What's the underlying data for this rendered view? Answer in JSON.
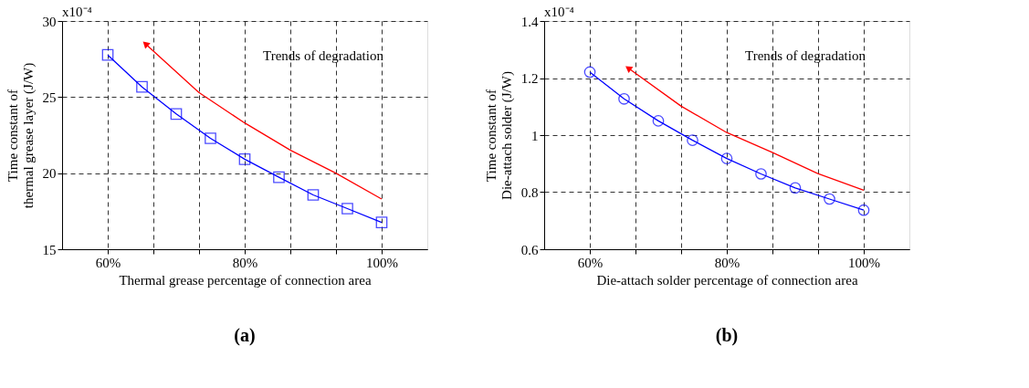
{
  "chart_data": [
    {
      "type": "line",
      "xlabel": "Thermal grease percentage of connection area",
      "ylabel": "Time constant of\nthermal grease layer (J/W)",
      "annotations": [
        "x10⁻⁴",
        "Trends of degradation",
        "(a)"
      ],
      "xlim": [
        53.33,
        106.67
      ],
      "xticks": [
        {
          "value": 60,
          "label": "60%"
        },
        {
          "value": 66.67,
          "label": null
        },
        {
          "value": 73.33,
          "label": null
        },
        {
          "value": 80,
          "label": "80%"
        },
        {
          "value": 86.67,
          "label": null
        },
        {
          "value": 93.33,
          "label": null
        },
        {
          "value": 100,
          "label": "100%"
        }
      ],
      "ylim": [
        15,
        30
      ],
      "yticks": [
        15,
        20,
        25,
        30
      ],
      "grid": true,
      "legend": false,
      "marker": "square",
      "line_style": "solid",
      "series": [
        {
          "color": "#0000ff",
          "x": [
            60,
            65,
            70,
            75,
            80,
            85,
            90,
            95,
            100
          ],
          "values": [
            27.77,
            25.67,
            23.89,
            22.29,
            20.92,
            19.73,
            18.57,
            17.67,
            16.76
          ]
        },
        {
          "color": "#ff0000",
          "marker": "none",
          "x": [
            65.5,
            73.3,
            80,
            86.7,
            93.3,
            100
          ],
          "values": [
            28.5,
            25.3,
            23.3,
            21.5,
            20.0,
            18.3
          ]
        }
      ]
    },
    {
      "type": "line",
      "xlabel": "Die-attach solder percentage of connection area",
      "ylabel": "Time constant of\nDie-attach solder (J/W)",
      "annotations": [
        "x10⁻⁴",
        "Trends of degradation",
        "(b)"
      ],
      "xlim": [
        53.33,
        106.67
      ],
      "xticks": [
        {
          "value": 60,
          "label": "60%"
        },
        {
          "value": 66.67,
          "label": null
        },
        {
          "value": 73.33,
          "label": null
        },
        {
          "value": 80,
          "label": "80%"
        },
        {
          "value": 86.67,
          "label": null
        },
        {
          "value": 93.33,
          "label": null
        },
        {
          "value": 100,
          "label": "100%"
        }
      ],
      "ylim": [
        0.6,
        1.4
      ],
      "yticks": [
        0.6,
        0.8,
        1,
        1.2,
        1.4
      ],
      "grid": true,
      "legend": false,
      "marker": "circle",
      "line_style": "solid",
      "series": [
        {
          "color": "#0000ff",
          "x": [
            60,
            65,
            70,
            75,
            80,
            85,
            90,
            95,
            100
          ],
          "values": [
            1.221,
            1.127,
            1.05,
            0.982,
            0.918,
            0.864,
            0.815,
            0.776,
            0.737
          ]
        },
        {
          "color": "#ff0000",
          "marker": "none",
          "x": [
            65.6,
            73.3,
            80,
            86.7,
            93.3,
            100
          ],
          "values": [
            1.235,
            1.102,
            1.009,
            0.939,
            0.865,
            0.807
          ]
        }
      ]
    }
  ]
}
